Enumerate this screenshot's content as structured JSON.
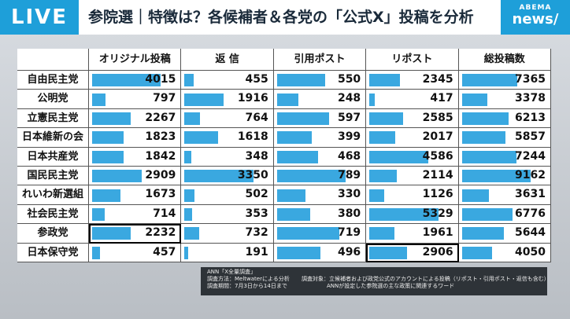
{
  "header": {
    "live": "LIVE",
    "title": "参院選｜特徴は？各候補者＆各党の「公式X」投稿を分析",
    "logo_top": "ABEMA",
    "logo_bottom": "news/"
  },
  "table": {
    "columns": [
      "オリジナル投稿",
      "返 信",
      "引用ポスト",
      "リポスト",
      "総投稿数"
    ],
    "rows": [
      {
        "party": "自由民主党",
        "values": [
          4015,
          455,
          550,
          2345,
          7365
        ]
      },
      {
        "party": "公明党",
        "values": [
          797,
          1916,
          248,
          417,
          3378
        ]
      },
      {
        "party": "立憲民主党",
        "values": [
          2267,
          764,
          597,
          2585,
          6213
        ]
      },
      {
        "party": "日本維新の会",
        "values": [
          1823,
          1618,
          399,
          2017,
          5857
        ]
      },
      {
        "party": "日本共産党",
        "values": [
          1842,
          348,
          468,
          4586,
          7244
        ]
      },
      {
        "party": "国民民主党",
        "values": [
          2909,
          3350,
          789,
          2114,
          9162
        ]
      },
      {
        "party": "れいわ新選組",
        "values": [
          1673,
          502,
          330,
          1126,
          3631
        ]
      },
      {
        "party": "社会民主党",
        "values": [
          714,
          353,
          380,
          5329,
          6776
        ]
      },
      {
        "party": "参政党",
        "values": [
          2232,
          732,
          719,
          1961,
          5644
        ]
      },
      {
        "party": "日本保守党",
        "values": [
          457,
          191,
          496,
          2906,
          4050
        ]
      }
    ]
  },
  "note": {
    "source": "ANN「X全量調査」",
    "method": "調査方法：Meltwaterによる分析",
    "period": "調査期間：7月3日から14日まで",
    "target": "調査対象：立候補者および政党公式のアカウントによる投稿（リポスト・引用ポスト・返信も含む）",
    "words": "ANNが設定した参院選の主な政策に関連するワード"
  }
}
